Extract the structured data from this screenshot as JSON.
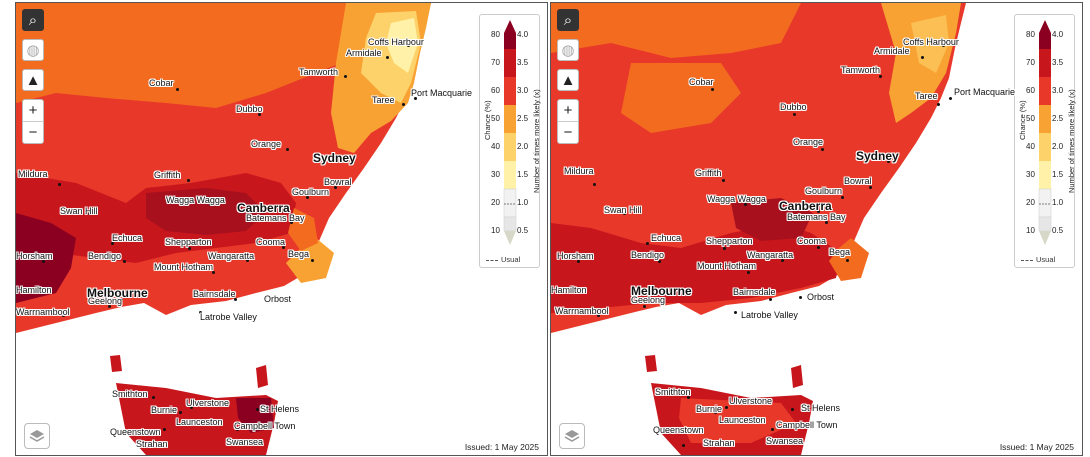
{
  "panels": [
    {
      "id": "left",
      "issued": "Issued: 1 May 2025"
    },
    {
      "id": "right",
      "issued": "Issued: 1 May 2025"
    }
  ],
  "legend": {
    "chance_title": "Chance (%)",
    "times_title": "Number of times more likely (x)",
    "chance_ticks": [
      "80",
      "70",
      "60",
      "50",
      "40",
      "30",
      "20",
      "10"
    ],
    "times_ticks": [
      "4.0",
      "3.5",
      "3.0",
      "2.5",
      "2.0",
      "1.5",
      "1.0",
      "0.5"
    ],
    "usual_label": "Usual",
    "colors": [
      "#8b0020",
      "#c8161d",
      "#e8382a",
      "#f26b1f",
      "#f8a233",
      "#fdd26a",
      "#fff2a8",
      "#f2f2f2",
      "#e6e6e6"
    ]
  },
  "controls": {
    "search_icon": "search-icon",
    "globe_icon": "globe-icon",
    "australia_icon": "australia-icon",
    "zoom_in": "+",
    "zoom_out": "−",
    "layers_icon": "layers-icon"
  },
  "towns": [
    {
      "key": "coffs",
      "name": "Coffs Harbour"
    },
    {
      "key": "armidale",
      "name": "Armidale"
    },
    {
      "key": "tamworth",
      "name": "Tamworth"
    },
    {
      "key": "portmac",
      "name": "Port Macquarie"
    },
    {
      "key": "cobar",
      "name": "Cobar"
    },
    {
      "key": "taree",
      "name": "Taree"
    },
    {
      "key": "dubbo",
      "name": "Dubbo"
    },
    {
      "key": "orange",
      "name": "Orange"
    },
    {
      "key": "sydney",
      "name": "Sydney"
    },
    {
      "key": "mildura",
      "name": "Mildura"
    },
    {
      "key": "griffith",
      "name": "Griffith"
    },
    {
      "key": "bowral",
      "name": "Bowral"
    },
    {
      "key": "goulburn",
      "name": "Goulburn"
    },
    {
      "key": "swanhill",
      "name": "Swan Hill"
    },
    {
      "key": "wagga",
      "name": "Wagga Wagga"
    },
    {
      "key": "canberra",
      "name": "Canberra"
    },
    {
      "key": "batemans",
      "name": "Batemans Bay"
    },
    {
      "key": "echuca",
      "name": "Echuca"
    },
    {
      "key": "shepparton",
      "name": "Shepparton"
    },
    {
      "key": "cooma",
      "name": "Cooma"
    },
    {
      "key": "bendigo",
      "name": "Bendigo"
    },
    {
      "key": "wangaratta",
      "name": "Wangaratta"
    },
    {
      "key": "bega",
      "name": "Bega"
    },
    {
      "key": "horsham",
      "name": "Horsham"
    },
    {
      "key": "hotham",
      "name": "Mount Hotham"
    },
    {
      "key": "hamilton",
      "name": "Hamilton"
    },
    {
      "key": "melbourne",
      "name": "Melbourne"
    },
    {
      "key": "bairnsdale",
      "name": "Bairnsdale"
    },
    {
      "key": "orbost",
      "name": "Orbost"
    },
    {
      "key": "geelong",
      "name": "Geelong"
    },
    {
      "key": "warrnambool",
      "name": "Warrnambool"
    },
    {
      "key": "latrobe",
      "name": "Latrobe Valley"
    },
    {
      "key": "smithton",
      "name": "Smithton"
    },
    {
      "key": "ulverstone",
      "name": "Ulverstone"
    },
    {
      "key": "burnie",
      "name": "Burnie"
    },
    {
      "key": "sthelens",
      "name": "St Helens"
    },
    {
      "key": "launceston",
      "name": "Launceston"
    },
    {
      "key": "queenstown",
      "name": "Queenstown"
    },
    {
      "key": "campbell",
      "name": "Campbell Town"
    },
    {
      "key": "strahan",
      "name": "Strahan"
    },
    {
      "key": "swansea",
      "name": "Swansea"
    }
  ]
}
